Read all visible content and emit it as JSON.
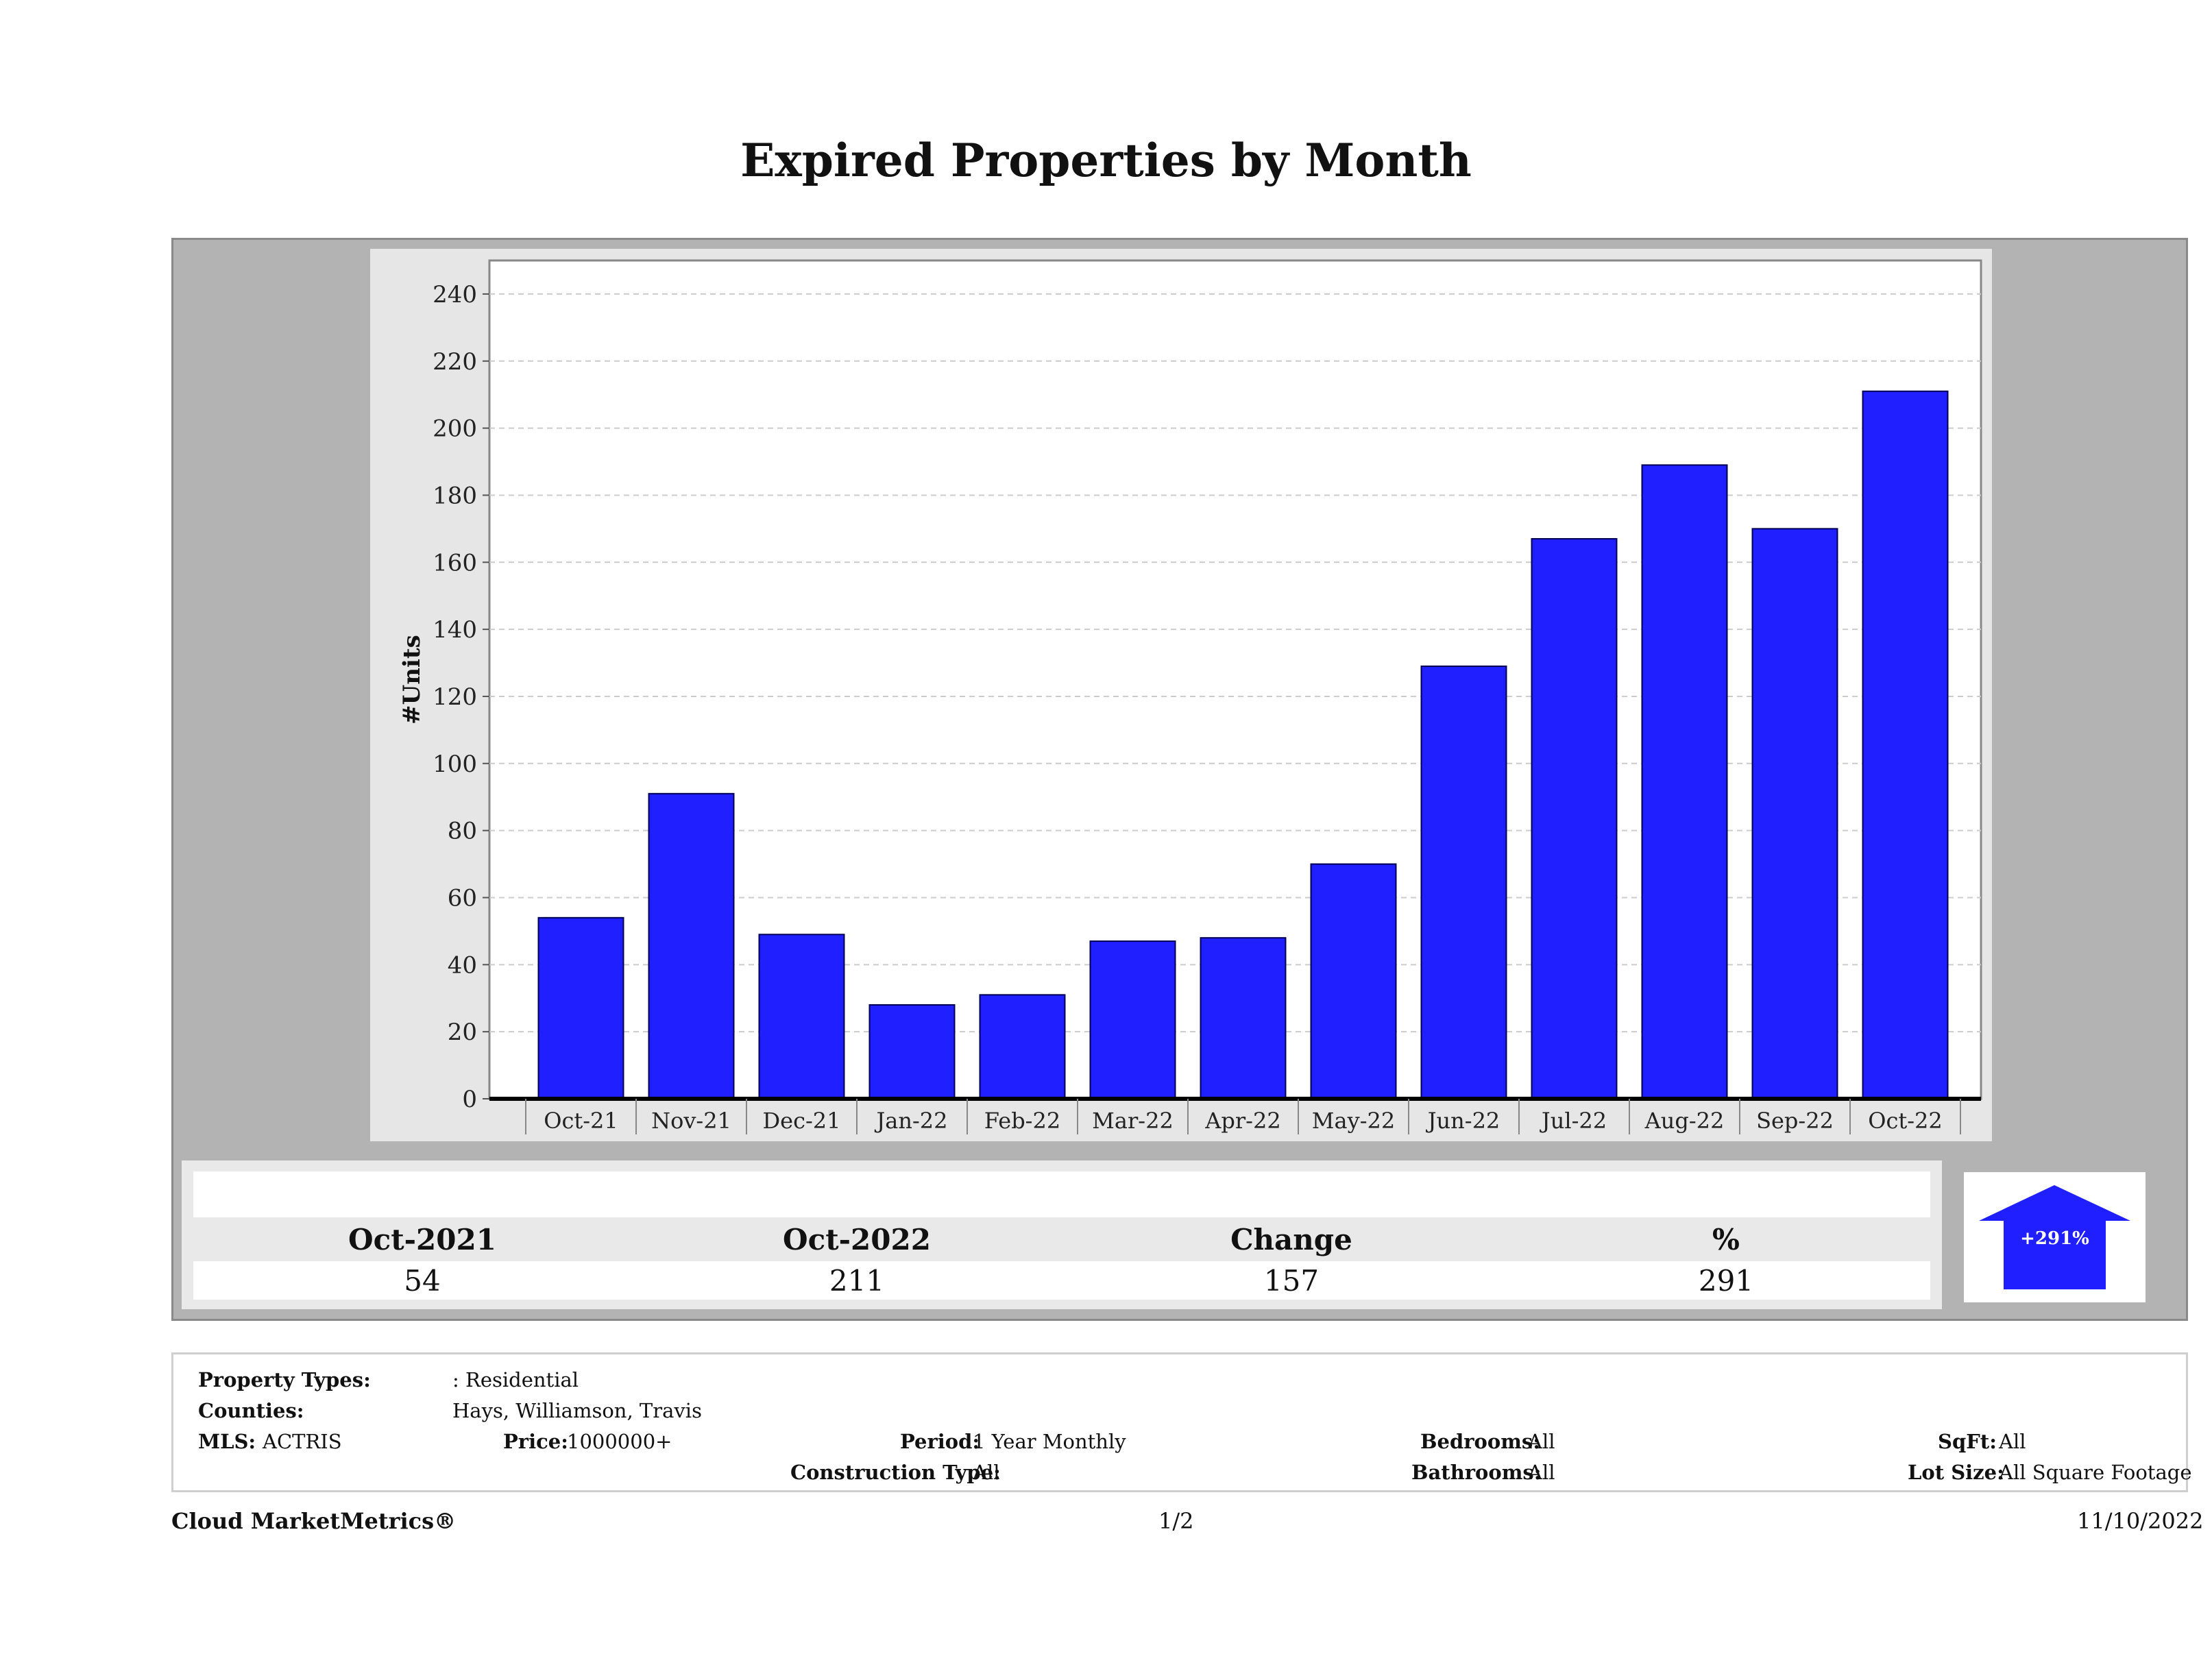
{
  "title": "Expired Properties by Month",
  "chart_data": {
    "type": "bar",
    "title": "Expired Properties by Month",
    "xlabel": "",
    "ylabel": "#Units",
    "ylim": [
      0,
      250
    ],
    "yticks": [
      0,
      20,
      40,
      60,
      80,
      100,
      120,
      140,
      160,
      180,
      200,
      220,
      240
    ],
    "grid": true,
    "bar_color": "#1f1fff",
    "categories": [
      "Oct-21",
      "Nov-21",
      "Dec-21",
      "Jan-22",
      "Feb-22",
      "Mar-22",
      "Apr-22",
      "May-22",
      "Jun-22",
      "Jul-22",
      "Aug-22",
      "Sep-22",
      "Oct-22"
    ],
    "values": [
      54,
      91,
      49,
      28,
      31,
      47,
      48,
      70,
      129,
      167,
      189,
      170,
      211
    ]
  },
  "stats": {
    "headers": [
      "Oct-2021",
      "Oct-2022",
      "Change",
      "%"
    ],
    "values": [
      "54",
      "211",
      "157",
      "291"
    ],
    "badge": "+291%",
    "badge_color": "#1f1fff"
  },
  "info": {
    "property_types_label": "Property Types:",
    "property_types_value": ": Residential",
    "counties_label": "Counties:",
    "counties_value": "Hays, Williamson, Travis",
    "mls_label": "MLS:",
    "mls_value": "ACTRIS",
    "price_label": "Price:",
    "price_value": "1000000+",
    "period_label": "Period:",
    "period_value": "1 Year Monthly",
    "construction_label": "Construction Type:",
    "construction_value": "All",
    "bedrooms_label": "Bedrooms:",
    "bedrooms_value": "All",
    "bathrooms_label": "Bathrooms:",
    "bathrooms_value": "All",
    "sqft_label": "SqFt:",
    "sqft_value": "All",
    "lotsize_label": "Lot Size:",
    "lotsize_value": "All Square Footage"
  },
  "footer": {
    "brand": "Cloud MarketMetrics®",
    "page": "1/2",
    "date": "11/10/2022"
  }
}
